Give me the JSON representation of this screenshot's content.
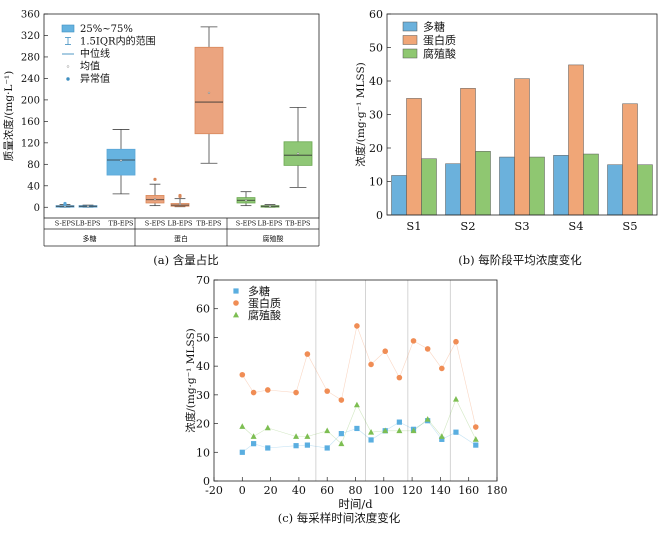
{
  "chart_data": [
    {
      "type": "box",
      "panel": "a",
      "caption": "(a) 含量占比",
      "ylabel": "质量浓度/(mg·L⁻¹)",
      "ylim": [
        -20,
        360
      ],
      "yticks": [
        0,
        40,
        80,
        120,
        160,
        200,
        240,
        280,
        320,
        360
      ],
      "legend": [
        "25%~75%",
        "1.5IQR内的范围",
        "中位线",
        "均值",
        "异常值"
      ],
      "groups": [
        {
          "name": "多糖",
          "color": "#5aa7d8",
          "fill": "#66b3e0",
          "boxes": [
            {
              "label": "S-EPS",
              "whislo": 0,
              "q1": 1,
              "median": 2,
              "mean": 2,
              "q3": 3,
              "whishi": 5,
              "outliers": [
                5,
                6,
                7
              ]
            },
            {
              "label": "LB-EPS",
              "whislo": 0,
              "q1": 1,
              "median": 2,
              "mean": 2,
              "q3": 3,
              "whishi": 4,
              "outliers": []
            },
            {
              "label": "TB-EPS",
              "whislo": 25,
              "q1": 60,
              "median": 88,
              "mean": 87,
              "q3": 108,
              "whishi": 145,
              "outliers": []
            }
          ]
        },
        {
          "name": "蛋白",
          "color": "#d9885a",
          "fill": "#eba47f",
          "boxes": [
            {
              "label": "S-EPS",
              "whislo": 3,
              "q1": 8,
              "median": 14,
              "mean": 15,
              "q3": 22,
              "whishi": 43,
              "outliers": [
                52
              ]
            },
            {
              "label": "LB-EPS",
              "whislo": 1,
              "q1": 2,
              "median": 4,
              "mean": 6,
              "q3": 7,
              "whishi": 16,
              "outliers": [
                20,
                22
              ]
            },
            {
              "label": "TB-EPS",
              "whislo": 82,
              "q1": 137,
              "median": 196,
              "mean": 213,
              "q3": 298,
              "whishi": 336,
              "outliers": []
            }
          ]
        },
        {
          "name": "腐殖酸",
          "color": "#6aa84f",
          "fill": "#8fc776",
          "boxes": [
            {
              "label": "S-EPS",
              "whislo": 3,
              "q1": 8,
              "median": 13,
              "mean": 13,
              "q3": 18,
              "whishi": 29,
              "outliers": []
            },
            {
              "label": "LB-EPS",
              "whislo": 0,
              "q1": 1,
              "median": 2,
              "mean": 2,
              "q3": 3,
              "whishi": 5,
              "outliers": []
            },
            {
              "label": "TB-EPS",
              "whislo": 37,
              "q1": 78,
              "median": 97,
              "mean": 100,
              "q3": 122,
              "whishi": 186,
              "outliers": []
            }
          ]
        }
      ]
    },
    {
      "type": "bar",
      "panel": "b",
      "caption": "(b) 每阶段平均浓度变化",
      "ylabel": "浓度/(mg·g⁻¹ MLSS)",
      "ylim": [
        0,
        60
      ],
      "yticks": [
        0,
        10,
        20,
        30,
        40,
        50,
        60
      ],
      "categories": [
        "S1",
        "S2",
        "S3",
        "S4",
        "S5"
      ],
      "series": [
        {
          "name": "多糖",
          "color": "#6bb1dc",
          "values": [
            11.8,
            15.3,
            17.3,
            17.8,
            15.0
          ]
        },
        {
          "name": "蛋白质",
          "color": "#f0a677",
          "values": [
            34.8,
            37.8,
            40.7,
            44.8,
            33.2
          ]
        },
        {
          "name": "腐殖酸",
          "color": "#8fc771",
          "values": [
            16.8,
            19.0,
            17.3,
            18.2,
            15.0
          ]
        }
      ]
    },
    {
      "type": "line",
      "panel": "c",
      "caption": "(c) 每采样时间浓度变化",
      "xlabel": "时间/d",
      "ylabel": "浓度/(mg·g⁻¹ MLSS)",
      "xlim": [
        -20,
        180
      ],
      "ylim": [
        0,
        70
      ],
      "xticks": [
        -20,
        0,
        20,
        40,
        60,
        80,
        100,
        120,
        140,
        160,
        180
      ],
      "yticks": [
        0,
        10,
        20,
        30,
        40,
        50,
        60,
        70
      ],
      "stage_boundaries": [
        52,
        87,
        117,
        147
      ],
      "series": [
        {
          "name": "多糖",
          "color": "#5aaee0",
          "marker": "square",
          "x": [
            0,
            8,
            18,
            38,
            46,
            60,
            70,
            81,
            91,
            101,
            111,
            121,
            131,
            141,
            151,
            165
          ],
          "y": [
            10,
            13,
            11.5,
            12.3,
            12.5,
            11.5,
            16.5,
            18.3,
            14.3,
            17.5,
            20.5,
            18,
            21,
            14.5,
            17,
            12.5
          ]
        },
        {
          "name": "蛋白质",
          "color": "#f08d55",
          "marker": "circle",
          "x": [
            0,
            8,
            18,
            38,
            46,
            60,
            70,
            81,
            91,
            101,
            111,
            121,
            131,
            141,
            151,
            165
          ],
          "y": [
            37,
            30.8,
            31.7,
            30.8,
            44.2,
            31.3,
            28.2,
            54,
            40.6,
            45.2,
            36,
            48.8,
            46,
            39.2,
            48.5,
            18.8
          ]
        },
        {
          "name": "腐殖酸",
          "color": "#7dbe52",
          "marker": "triangle",
          "x": [
            0,
            8,
            18,
            38,
            46,
            60,
            70,
            81,
            91,
            101,
            111,
            121,
            131,
            141,
            151,
            165
          ],
          "y": [
            19,
            15.5,
            18.5,
            15.5,
            15.5,
            17.5,
            13,
            26.5,
            17,
            17.5,
            17.5,
            17.5,
            21.5,
            15.5,
            28.5,
            14.5
          ]
        }
      ]
    }
  ]
}
